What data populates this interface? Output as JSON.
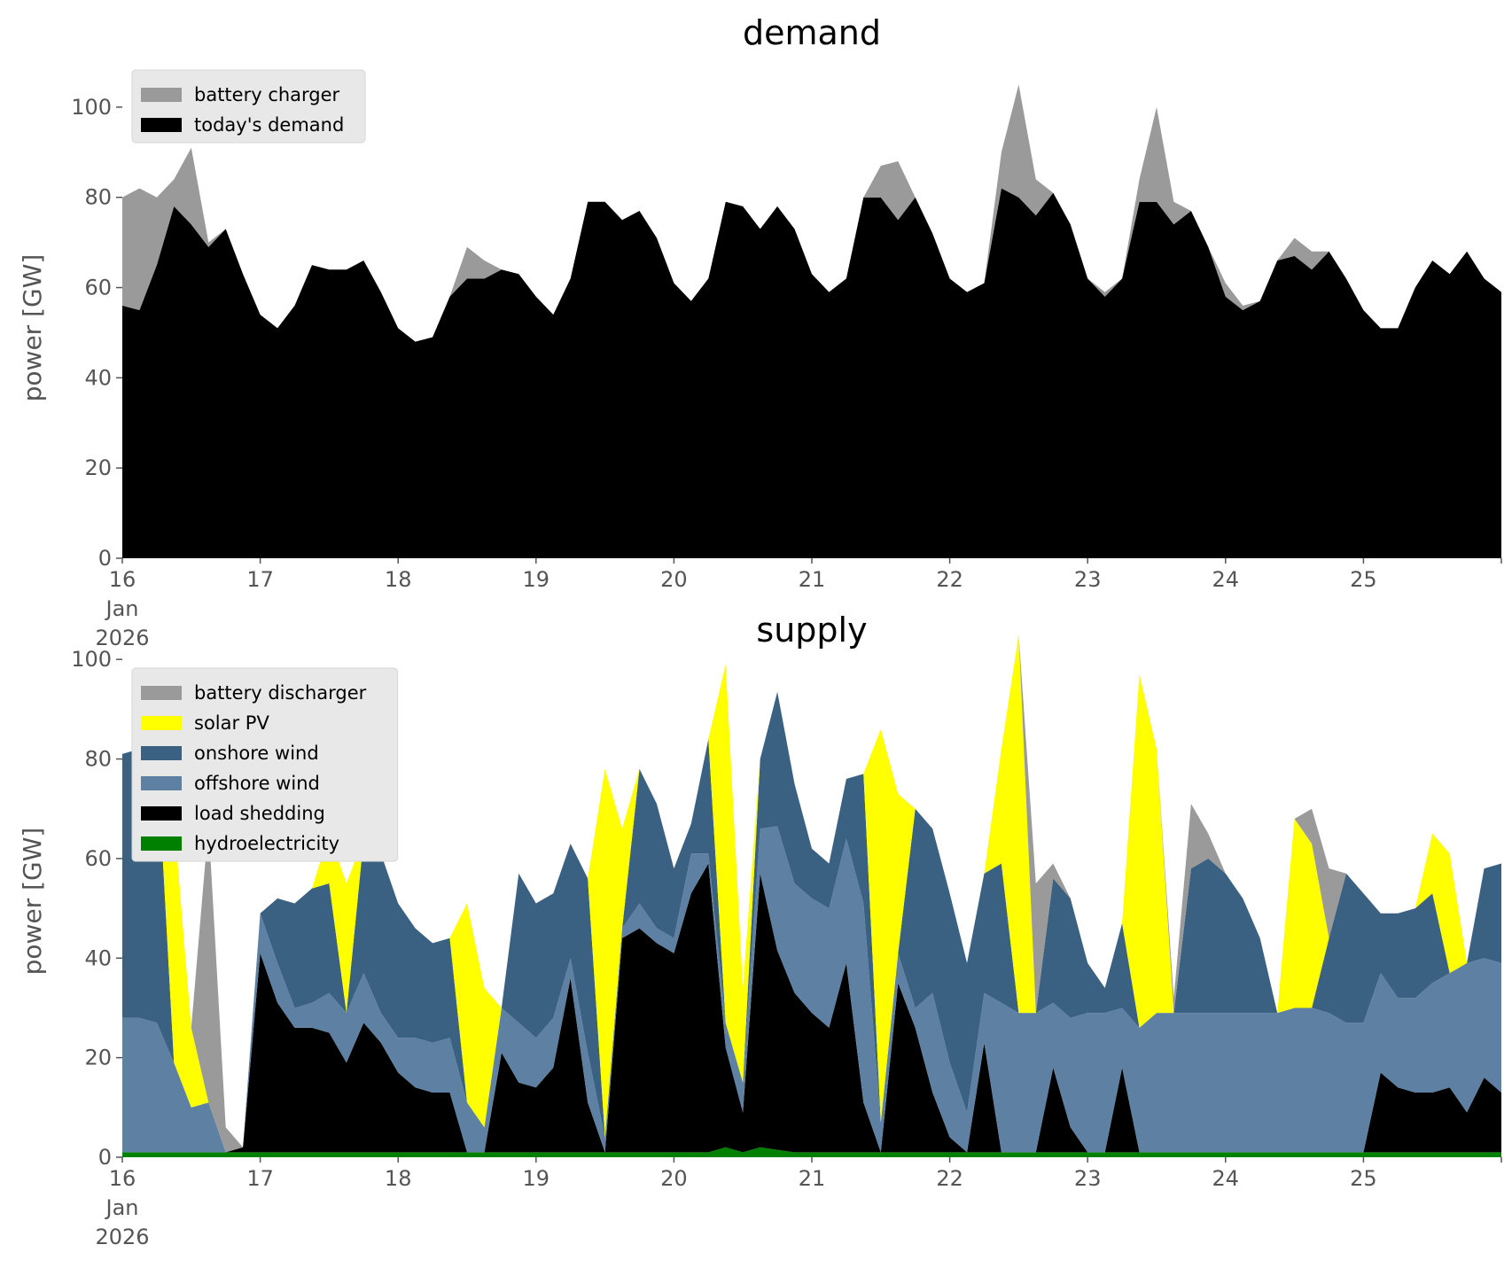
{
  "chart_data": [
    {
      "type": "area",
      "stacked": true,
      "title": "demand",
      "ylabel": "power [GW]",
      "xlabel": "",
      "ylim": [
        0,
        110
      ],
      "xlim": [
        "2026-01-16",
        "2026-01-26"
      ],
      "yticks": [
        0,
        20,
        40,
        60,
        80,
        100
      ],
      "xticks": [
        {
          "x": "2026-01-16",
          "label": "16",
          "label2": "Jan",
          "label3": "2026"
        },
        {
          "x": "2026-01-17",
          "label": "17"
        },
        {
          "x": "2026-01-18",
          "label": "18"
        },
        {
          "x": "2026-01-19",
          "label": "19"
        },
        {
          "x": "2026-01-20",
          "label": "20"
        },
        {
          "x": "2026-01-21",
          "label": "21"
        },
        {
          "x": "2026-01-22",
          "label": "22"
        },
        {
          "x": "2026-01-23",
          "label": "23"
        },
        {
          "x": "2026-01-24",
          "label": "24"
        },
        {
          "x": "2026-01-25",
          "label": "25"
        },
        {
          "x": "2026-01-26",
          "label": ""
        }
      ],
      "grid": false,
      "legend_position": "top-left",
      "x": [
        "2026-01-16 00:00",
        "2026-01-16 03:00",
        "2026-01-16 06:00",
        "2026-01-16 09:00",
        "2026-01-16 12:00",
        "2026-01-16 15:00",
        "2026-01-16 18:00",
        "2026-01-16 21:00",
        "2026-01-17 00:00",
        "2026-01-17 03:00",
        "2026-01-17 06:00",
        "2026-01-17 09:00",
        "2026-01-17 12:00",
        "2026-01-17 15:00",
        "2026-01-17 18:00",
        "2026-01-17 21:00",
        "2026-01-18 00:00",
        "2026-01-18 03:00",
        "2026-01-18 06:00",
        "2026-01-18 09:00",
        "2026-01-18 12:00",
        "2026-01-18 15:00",
        "2026-01-18 18:00",
        "2026-01-18 21:00",
        "2026-01-19 00:00",
        "2026-01-19 03:00",
        "2026-01-19 06:00",
        "2026-01-19 09:00",
        "2026-01-19 12:00",
        "2026-01-19 15:00",
        "2026-01-19 18:00",
        "2026-01-19 21:00",
        "2026-01-20 00:00",
        "2026-01-20 03:00",
        "2026-01-20 06:00",
        "2026-01-20 09:00",
        "2026-01-20 12:00",
        "2026-01-20 15:00",
        "2026-01-20 18:00",
        "2026-01-20 21:00",
        "2026-01-21 00:00",
        "2026-01-21 03:00",
        "2026-01-21 06:00",
        "2026-01-21 09:00",
        "2026-01-21 12:00",
        "2026-01-21 15:00",
        "2026-01-21 18:00",
        "2026-01-21 21:00",
        "2026-01-22 00:00",
        "2026-01-22 03:00",
        "2026-01-22 06:00",
        "2026-01-22 09:00",
        "2026-01-22 12:00",
        "2026-01-22 15:00",
        "2026-01-22 18:00",
        "2026-01-22 21:00",
        "2026-01-23 00:00",
        "2026-01-23 03:00",
        "2026-01-23 06:00",
        "2026-01-23 09:00",
        "2026-01-23 12:00",
        "2026-01-23 15:00",
        "2026-01-23 18:00",
        "2026-01-23 21:00",
        "2026-01-24 00:00",
        "2026-01-24 03:00",
        "2026-01-24 06:00",
        "2026-01-24 09:00",
        "2026-01-24 12:00",
        "2026-01-24 15:00",
        "2026-01-24 18:00",
        "2026-01-24 21:00",
        "2026-01-25 00:00",
        "2026-01-25 03:00",
        "2026-01-25 06:00",
        "2026-01-25 09:00",
        "2026-01-25 12:00",
        "2026-01-25 15:00",
        "2026-01-25 18:00",
        "2026-01-25 21:00",
        "2026-01-26 00:00"
      ],
      "series": [
        {
          "name": "today's demand",
          "color": "#000000",
          "values": [
            56,
            55,
            65,
            78,
            74,
            69,
            73,
            63,
            54,
            51,
            56,
            65,
            64,
            64,
            66,
            59,
            51,
            48,
            49,
            58,
            62,
            62,
            64,
            63,
            58,
            54,
            62,
            79,
            79,
            75,
            77,
            71,
            61,
            57,
            62,
            79,
            78,
            73,
            78,
            73,
            63,
            59,
            62,
            80,
            80,
            75,
            80,
            72,
            62,
            59,
            61,
            82,
            80,
            76,
            81,
            74,
            62,
            58,
            62,
            79,
            79,
            74,
            77,
            69,
            58,
            55,
            57,
            66,
            67,
            64,
            68,
            62,
            55,
            51,
            51,
            60,
            66,
            63,
            68,
            62,
            59
          ]
        },
        {
          "name": "battery charger",
          "color": "#9a9a9a",
          "values": [
            24,
            27,
            15,
            6,
            17,
            1,
            0,
            0,
            0,
            0,
            0,
            0,
            0,
            0,
            0,
            0,
            0,
            0,
            0,
            0,
            7,
            4,
            0,
            0,
            0,
            0,
            0,
            0,
            0,
            0,
            0,
            0,
            0,
            0,
            0,
            0,
            0,
            0,
            0,
            0,
            0,
            0,
            0,
            0,
            7,
            13,
            0,
            0,
            0,
            0,
            0,
            8,
            25,
            8,
            0,
            0,
            0,
            1,
            0,
            5,
            21,
            5,
            0,
            0,
            3,
            1,
            0,
            0,
            4,
            4,
            0,
            0,
            0,
            0,
            0,
            0,
            0,
            0,
            0,
            0,
            0
          ]
        }
      ]
    },
    {
      "type": "area",
      "stacked": true,
      "title": "supply",
      "ylabel": "power [GW]",
      "xlabel": "",
      "ylim": [
        0,
        110
      ],
      "xlim": [
        "2026-01-16",
        "2026-01-26"
      ],
      "yticks": [
        0,
        20,
        40,
        60,
        80,
        100
      ],
      "xticks": [
        {
          "x": "2026-01-16",
          "label": "16",
          "label2": "Jan",
          "label3": "2026"
        },
        {
          "x": "2026-01-17",
          "label": "17"
        },
        {
          "x": "2026-01-18",
          "label": "18"
        },
        {
          "x": "2026-01-19",
          "label": "19"
        },
        {
          "x": "2026-01-20",
          "label": "20"
        },
        {
          "x": "2026-01-21",
          "label": "21"
        },
        {
          "x": "2026-01-22",
          "label": "22"
        },
        {
          "x": "2026-01-23",
          "label": "23"
        },
        {
          "x": "2026-01-24",
          "label": "24"
        },
        {
          "x": "2026-01-25",
          "label": "25"
        },
        {
          "x": "2026-01-26",
          "label": ""
        }
      ],
      "grid": false,
      "legend_position": "top-left",
      "x": [
        "2026-01-16 00:00",
        "2026-01-16 03:00",
        "2026-01-16 06:00",
        "2026-01-16 09:00",
        "2026-01-16 12:00",
        "2026-01-16 15:00",
        "2026-01-16 18:00",
        "2026-01-16 21:00",
        "2026-01-17 00:00",
        "2026-01-17 03:00",
        "2026-01-17 06:00",
        "2026-01-17 09:00",
        "2026-01-17 12:00",
        "2026-01-17 15:00",
        "2026-01-17 18:00",
        "2026-01-17 21:00",
        "2026-01-18 00:00",
        "2026-01-18 03:00",
        "2026-01-18 06:00",
        "2026-01-18 09:00",
        "2026-01-18 12:00",
        "2026-01-18 15:00",
        "2026-01-18 18:00",
        "2026-01-18 21:00",
        "2026-01-19 00:00",
        "2026-01-19 03:00",
        "2026-01-19 06:00",
        "2026-01-19 09:00",
        "2026-01-19 12:00",
        "2026-01-19 15:00",
        "2026-01-19 18:00",
        "2026-01-19 21:00",
        "2026-01-20 00:00",
        "2026-01-20 03:00",
        "2026-01-20 06:00",
        "2026-01-20 09:00",
        "2026-01-20 12:00",
        "2026-01-20 15:00",
        "2026-01-20 18:00",
        "2026-01-20 21:00",
        "2026-01-21 00:00",
        "2026-01-21 03:00",
        "2026-01-21 06:00",
        "2026-01-21 09:00",
        "2026-01-21 12:00",
        "2026-01-21 15:00",
        "2026-01-21 18:00",
        "2026-01-21 21:00",
        "2026-01-22 00:00",
        "2026-01-22 03:00",
        "2026-01-22 06:00",
        "2026-01-22 09:00",
        "2026-01-22 12:00",
        "2026-01-22 15:00",
        "2026-01-22 18:00",
        "2026-01-22 21:00",
        "2026-01-23 00:00",
        "2026-01-23 03:00",
        "2026-01-23 06:00",
        "2026-01-23 09:00",
        "2026-01-23 12:00",
        "2026-01-23 15:00",
        "2026-01-23 18:00",
        "2026-01-23 21:00",
        "2026-01-24 00:00",
        "2026-01-24 03:00",
        "2026-01-24 06:00",
        "2026-01-24 09:00",
        "2026-01-24 12:00",
        "2026-01-24 15:00",
        "2026-01-24 18:00",
        "2026-01-24 21:00",
        "2026-01-25 00:00",
        "2026-01-25 03:00",
        "2026-01-25 06:00",
        "2026-01-25 09:00",
        "2026-01-25 12:00",
        "2026-01-25 15:00",
        "2026-01-25 18:00",
        "2026-01-25 21:00",
        "2026-01-26 00:00"
      ],
      "series": [
        {
          "name": "hydroelectricity",
          "color": "#008000",
          "values": [
            1,
            1,
            1,
            1,
            1,
            1,
            1,
            1,
            1,
            1,
            1,
            1,
            1,
            1,
            1,
            1,
            1,
            1,
            1,
            1,
            1,
            1,
            1,
            1,
            1,
            1,
            1,
            1,
            1,
            1,
            1,
            1,
            1,
            1,
            1,
            2,
            1,
            2,
            1.5,
            1,
            1,
            1,
            1,
            1,
            1,
            1,
            1,
            1,
            1,
            1,
            1,
            1,
            1,
            1,
            1,
            1,
            1,
            1,
            1,
            1,
            1,
            1,
            1,
            1,
            1,
            1,
            1,
            1,
            1,
            1,
            1,
            1,
            1,
            1,
            1,
            1,
            1,
            1,
            1,
            1,
            1
          ]
        },
        {
          "name": "load shedding",
          "color": "#000000",
          "values": [
            0,
            0,
            0,
            0,
            0,
            0,
            0,
            1,
            40,
            30,
            25,
            25,
            24,
            18,
            26,
            22,
            16,
            13,
            12,
            12,
            0,
            0,
            20,
            14,
            13,
            17,
            35,
            10,
            0,
            43,
            45,
            42,
            40,
            52,
            58,
            20,
            8,
            55,
            40,
            32,
            28,
            25,
            38,
            10,
            0,
            34,
            25,
            12,
            3,
            0,
            22,
            0,
            0,
            0,
            17,
            5,
            0,
            0,
            17,
            0,
            0,
            0,
            0,
            0,
            0,
            0,
            0,
            0,
            0,
            0,
            0,
            0,
            0,
            16,
            13,
            12,
            12,
            13,
            8,
            15,
            12
          ]
        },
        {
          "name": "offshore wind",
          "color": "#5e81a3",
          "values": [
            27,
            27,
            26,
            18,
            9,
            10,
            0,
            0,
            8,
            8,
            4,
            5,
            8,
            10,
            10,
            6,
            7,
            10,
            10,
            11,
            10,
            5,
            9,
            12,
            10,
            10,
            4,
            10,
            3,
            2,
            5,
            3,
            3,
            8,
            2,
            5,
            6,
            9,
            25,
            22,
            23,
            24,
            25,
            40,
            6,
            6,
            4,
            20,
            15,
            8,
            10,
            30,
            28,
            28,
            13,
            22,
            28,
            28,
            12,
            25,
            28,
            28,
            28,
            28,
            28,
            28,
            28,
            28,
            29,
            29,
            28,
            26,
            26,
            20,
            18,
            19,
            22,
            23,
            30,
            24,
            26
          ]
        },
        {
          "name": "onshore wind",
          "color": "#3b6182",
          "values": [
            53,
            54,
            55,
            0,
            0,
            0,
            0,
            0,
            0,
            13,
            21,
            23,
            22,
            0,
            27,
            32,
            27,
            22,
            20,
            20,
            0,
            0,
            0,
            30,
            27,
            25,
            23,
            35,
            0,
            0,
            27,
            25,
            14,
            6,
            23,
            0,
            0,
            14,
            27,
            20,
            10,
            9,
            12,
            26,
            0,
            0,
            40,
            33,
            34,
            30,
            24,
            28,
            0,
            0,
            25,
            24,
            10,
            5,
            17,
            0,
            0,
            0,
            29,
            31,
            28,
            23,
            15,
            0,
            0,
            0,
            15,
            30,
            26,
            12,
            17,
            18,
            18,
            0,
            0,
            18,
            20
          ]
        },
        {
          "name": "solar PV",
          "color": "#ffff00",
          "values": [
            0,
            0,
            0,
            49,
            16,
            0,
            0,
            0,
            0,
            0,
            0,
            0,
            10,
            26,
            0,
            0,
            0,
            0,
            0,
            0,
            40,
            28,
            0,
            0,
            0,
            0,
            0,
            0,
            74,
            20,
            0,
            0,
            0,
            0,
            0,
            72,
            19,
            0,
            0,
            0,
            0,
            0,
            0,
            0,
            79,
            32,
            0,
            0,
            0,
            0,
            0,
            23,
            76,
            0,
            0,
            0,
            0,
            0,
            0,
            71,
            53,
            0,
            0,
            0,
            0,
            0,
            0,
            0,
            38,
            33,
            0,
            0,
            0,
            0,
            0,
            0,
            12,
            24,
            0,
            0,
            0
          ]
        },
        {
          "name": "battery discharger",
          "color": "#9a9a9a",
          "values": [
            0,
            0,
            0,
            0,
            0,
            56,
            5,
            0,
            0,
            0,
            0,
            0,
            0,
            0,
            0,
            0,
            0,
            0,
            0,
            0,
            0,
            0,
            0,
            0,
            0,
            0,
            0,
            0,
            0,
            0,
            0,
            0,
            0,
            0,
            0,
            0,
            0,
            0,
            0,
            0,
            0,
            0,
            0,
            0,
            0,
            0,
            0,
            0,
            0,
            0,
            0,
            0,
            0,
            26,
            3,
            0,
            0,
            0,
            0,
            0,
            0,
            3,
            13,
            5,
            0,
            0,
            0,
            0,
            0,
            7,
            14,
            0,
            0,
            0,
            0,
            0,
            0,
            0,
            0,
            0,
            0
          ]
        }
      ]
    }
  ]
}
